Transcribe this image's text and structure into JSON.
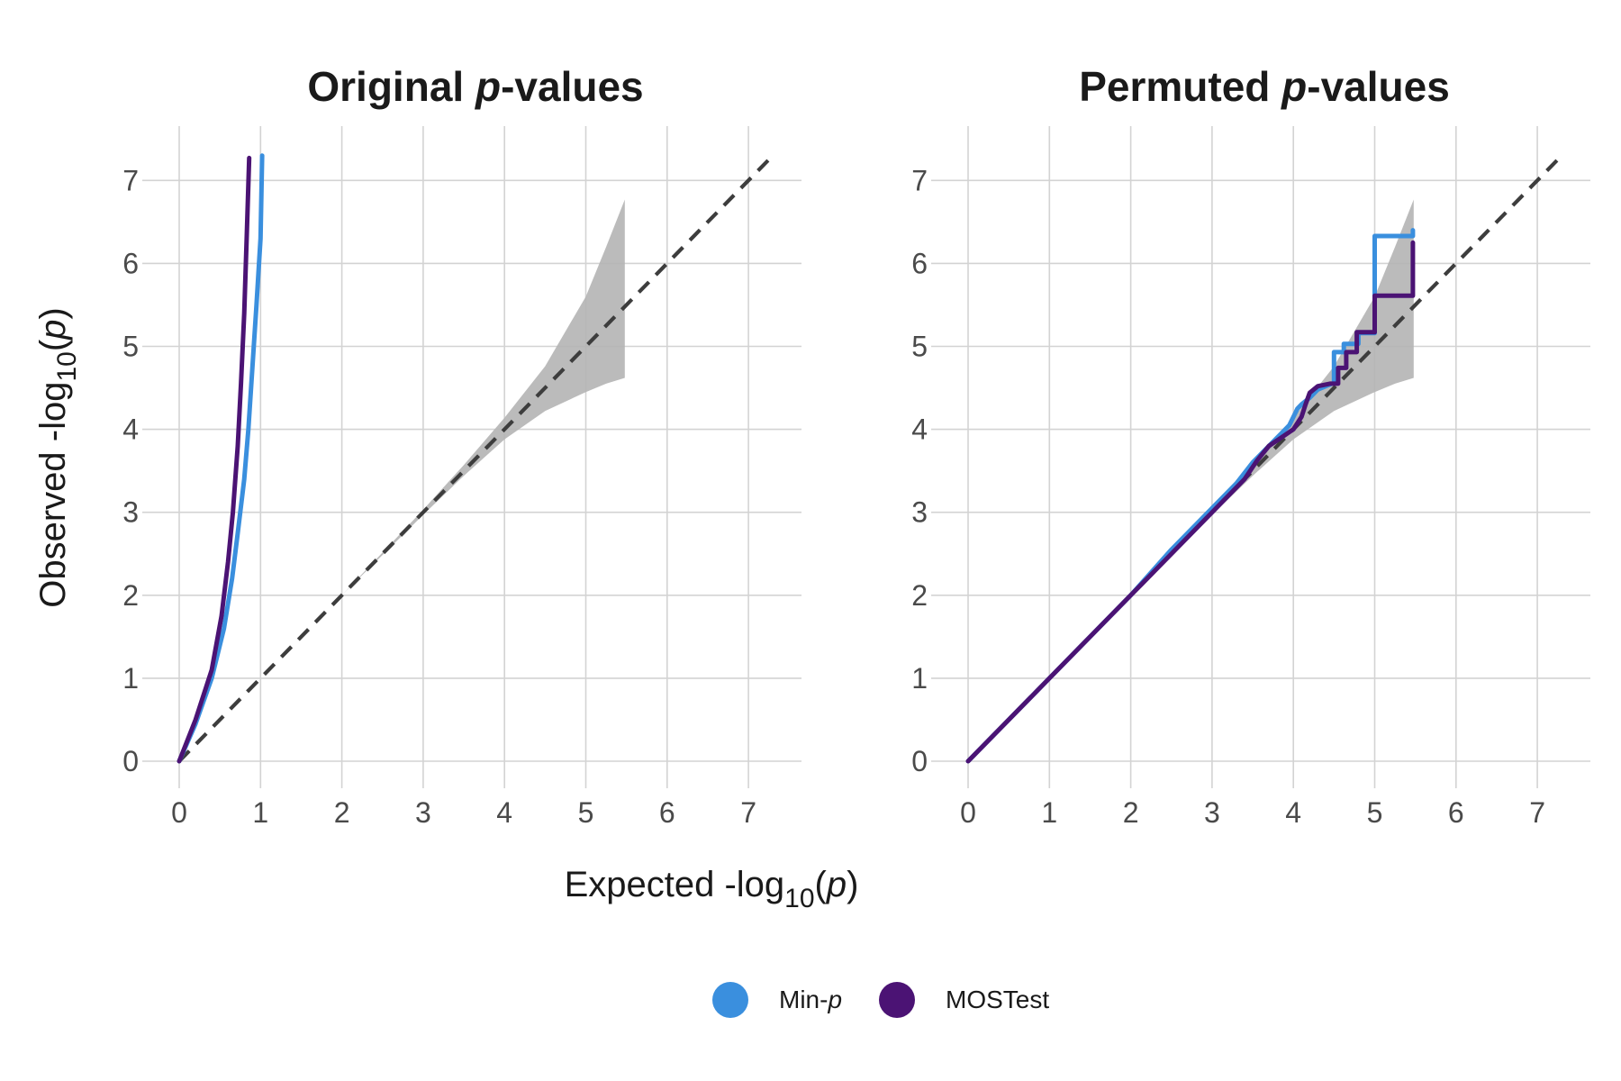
{
  "figure": {
    "x_axis_title": {
      "main": "Expected -log",
      "sub": "10",
      "paren_open": "(",
      "var": "p",
      "paren_close": ")"
    },
    "y_axis_title": {
      "main": "Observed -log",
      "sub": "10",
      "paren_open": "(",
      "var": "p",
      "paren_close": ")"
    }
  },
  "legend": {
    "items": [
      {
        "label_main": "Min-",
        "label_var": "p",
        "color": "#3a8fde"
      },
      {
        "label_main": "MOSTest",
        "label_var": "",
        "color": "#4b1374"
      }
    ]
  },
  "chart_data": [
    {
      "type": "line",
      "title": {
        "main": "Original ",
        "var": "p",
        "rest": "-values"
      },
      "xlim": [
        0,
        7.5
      ],
      "ylim": [
        0,
        7.4
      ],
      "x_ticks": [
        "0",
        "1",
        "2",
        "3",
        "4",
        "5",
        "6",
        "7"
      ],
      "y_ticks": [
        "0",
        "1",
        "2",
        "3",
        "4",
        "5",
        "6",
        "7"
      ],
      "grid": true,
      "reference_line": {
        "x": [
          0,
          7.3
        ],
        "y": [
          0,
          7.3
        ],
        "style": "dashed",
        "color": "#3d3d3d"
      },
      "confidence_band": {
        "color": "#b4b4b4",
        "x": [
          0.5,
          1,
          2,
          3,
          3.5,
          4,
          4.5,
          5,
          5.25,
          5.48
        ],
        "lower": [
          0.5,
          1,
          2,
          2.97,
          3.44,
          3.88,
          4.22,
          4.45,
          4.55,
          4.62
        ],
        "upper": [
          0.5,
          1,
          2,
          3.03,
          3.57,
          4.14,
          4.76,
          5.6,
          6.2,
          6.77
        ]
      },
      "series": [
        {
          "name": "Min-p",
          "color": "#3a8fde",
          "x": [
            0,
            0.2,
            0.4,
            0.55,
            0.65,
            0.72,
            0.8,
            0.85,
            0.9,
            0.95,
            1.0,
            1.02
          ],
          "y": [
            0,
            0.45,
            1.0,
            1.6,
            2.2,
            2.75,
            3.4,
            4.0,
            4.75,
            5.5,
            6.3,
            7.3
          ]
        },
        {
          "name": "MOSTest",
          "color": "#4b1374",
          "x": [
            0,
            0.2,
            0.4,
            0.52,
            0.6,
            0.66,
            0.72,
            0.76,
            0.8,
            0.83,
            0.86
          ],
          "y": [
            0,
            0.5,
            1.1,
            1.75,
            2.4,
            3.0,
            3.8,
            4.55,
            5.4,
            6.3,
            7.27
          ]
        }
      ]
    },
    {
      "type": "line",
      "title": {
        "main": "Permuted ",
        "var": "p",
        "rest": "-values"
      },
      "xlim": [
        0,
        7.5
      ],
      "ylim": [
        0,
        7.4
      ],
      "x_ticks": [
        "0",
        "1",
        "2",
        "3",
        "4",
        "5",
        "6",
        "7"
      ],
      "y_ticks": [
        "0",
        "1",
        "2",
        "3",
        "4",
        "5",
        "6",
        "7"
      ],
      "grid": true,
      "reference_line": {
        "x": [
          0,
          7.3
        ],
        "y": [
          0,
          7.3
        ],
        "style": "dashed",
        "color": "#3d3d3d"
      },
      "confidence_band": {
        "color": "#b4b4b4",
        "x": [
          0.5,
          1,
          2,
          3,
          3.5,
          4,
          4.5,
          5,
          5.25,
          5.48
        ],
        "lower": [
          0.5,
          1,
          2,
          2.97,
          3.44,
          3.88,
          4.22,
          4.45,
          4.55,
          4.62
        ],
        "upper": [
          0.5,
          1,
          2,
          3.03,
          3.57,
          4.14,
          4.76,
          5.6,
          6.2,
          6.77
        ]
      },
      "series": [
        {
          "name": "Min-p",
          "color": "#3a8fde",
          "x": [
            0,
            1,
            2,
            2.5,
            3.0,
            3.3,
            3.5,
            3.7,
            3.85,
            3.95,
            4.0,
            4.05,
            4.1,
            4.2,
            4.3,
            4.5,
            4.5,
            4.62,
            4.62,
            4.8,
            4.8,
            5.0,
            5.0,
            5.47,
            5.47
          ],
          "y": [
            0,
            1,
            2,
            2.55,
            3.05,
            3.35,
            3.6,
            3.8,
            3.95,
            4.05,
            4.15,
            4.25,
            4.3,
            4.38,
            4.48,
            4.56,
            4.93,
            4.93,
            5.03,
            5.03,
            5.16,
            5.16,
            6.33,
            6.33,
            6.4
          ]
        },
        {
          "name": "MOSTest",
          "color": "#4b1374",
          "x": [
            0,
            1,
            2,
            2.5,
            3.0,
            3.2,
            3.4,
            3.55,
            3.7,
            3.85,
            4.0,
            4.1,
            4.15,
            4.2,
            4.3,
            4.45,
            4.55,
            4.55,
            4.65,
            4.65,
            4.78,
            4.78,
            5.0,
            5.0,
            5.47,
            5.47
          ],
          "y": [
            0,
            1,
            2,
            2.5,
            3.0,
            3.2,
            3.4,
            3.62,
            3.8,
            3.9,
            4.0,
            4.15,
            4.3,
            4.44,
            4.52,
            4.55,
            4.55,
            4.74,
            4.74,
            4.93,
            4.93,
            5.17,
            5.17,
            5.61,
            5.61,
            6.25
          ]
        }
      ]
    }
  ]
}
